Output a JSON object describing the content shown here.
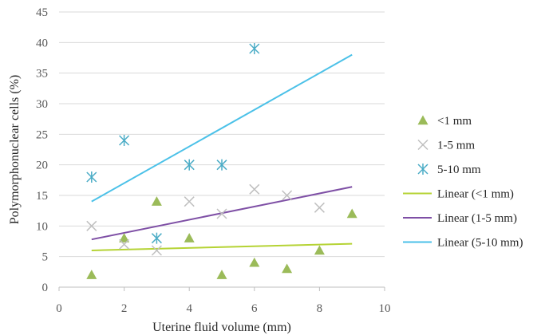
{
  "chart_data": {
    "type": "scatter",
    "title": "",
    "xlabel": "Uterine fluid volume (mm)",
    "ylabel": "Polymorphonuclear cells (%)",
    "xlim": [
      0,
      10
    ],
    "ylim": [
      0,
      45
    ],
    "x_ticks": [
      "0",
      "2",
      "4",
      "6",
      "8",
      "10"
    ],
    "y_ticks": [
      "0",
      "5",
      "10",
      "15",
      "20",
      "25",
      "30",
      "35",
      "40",
      "45"
    ],
    "grid": "horizontal",
    "legend_position": "right",
    "series": [
      {
        "name": "<1 mm",
        "marker": "triangle",
        "color": "#9bbb59",
        "points": [
          [
            1,
            2
          ],
          [
            2,
            8
          ],
          [
            3,
            14
          ],
          [
            4,
            8
          ],
          [
            5,
            2
          ],
          [
            6,
            4
          ],
          [
            7,
            3
          ],
          [
            8,
            6
          ],
          [
            9,
            12
          ]
        ]
      },
      {
        "name": "1-5 mm",
        "marker": "x",
        "color": "#bfbfbf",
        "points": [
          [
            1,
            10
          ],
          [
            2,
            7
          ],
          [
            3,
            6
          ],
          [
            4,
            14
          ],
          [
            5,
            12
          ],
          [
            6,
            16
          ],
          [
            7,
            15
          ],
          [
            8,
            13
          ]
        ]
      },
      {
        "name": "5-10 mm",
        "marker": "star",
        "color": "#4bacc6",
        "points": [
          [
            1,
            18
          ],
          [
            2,
            24
          ],
          [
            3,
            8
          ],
          [
            4,
            20
          ],
          [
            5,
            20
          ],
          [
            6,
            39
          ]
        ]
      }
    ],
    "trendlines": [
      {
        "name": "Linear (<1 mm)",
        "color": "#b5d334",
        "start": [
          1,
          6.0
        ],
        "end": [
          9,
          7.1
        ]
      },
      {
        "name": "Linear (1-5 mm)",
        "color": "#7e4fa5",
        "start": [
          1,
          7.8
        ],
        "end": [
          9,
          16.4
        ]
      },
      {
        "name": "Linear (5-10 mm)",
        "color": "#4bc1e8",
        "start": [
          1,
          14.0
        ],
        "end": [
          9,
          38.0
        ]
      }
    ]
  }
}
